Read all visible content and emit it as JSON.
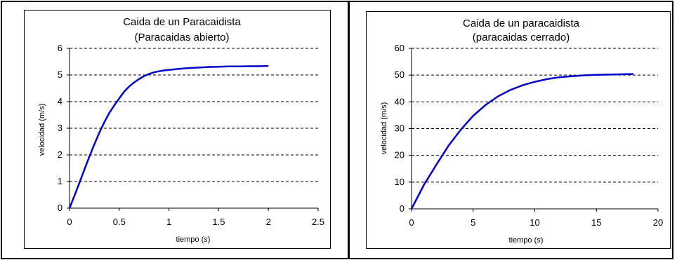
{
  "chart_data": [
    {
      "type": "line",
      "title": "Caida de un Paracaidista",
      "subtitle": "(Paracaidas abierto)",
      "xlabel": "tiempo",
      "xlabel_unit": "s",
      "ylabel": "velocidad (m/s)",
      "xlim": [
        0,
        2.5
      ],
      "ylim": [
        0,
        6
      ],
      "xticks": [
        "0",
        "0.5",
        "1",
        "1.5",
        "2",
        "2.5"
      ],
      "yticks": [
        "0",
        "1",
        "2",
        "3",
        "4",
        "5",
        "6"
      ],
      "grid": "horizontal dashed",
      "line_color": "#0000cc",
      "series": [
        {
          "x": [
            0,
            0.05,
            0.1,
            0.15,
            0.2,
            0.25,
            0.3,
            0.35,
            0.4,
            0.45,
            0.5,
            0.55,
            0.6,
            0.65,
            0.7,
            0.75,
            0.8,
            0.85,
            0.9,
            0.95,
            1.0,
            1.1,
            1.2,
            1.3,
            1.4,
            1.5,
            1.6,
            1.7,
            1.8,
            1.9,
            2.0
          ],
          "y": [
            0,
            0.47,
            0.96,
            1.45,
            1.94,
            2.4,
            2.84,
            3.23,
            3.57,
            3.86,
            4.12,
            4.38,
            4.57,
            4.72,
            4.85,
            4.96,
            5.04,
            5.1,
            5.14,
            5.17,
            5.19,
            5.23,
            5.26,
            5.28,
            5.3,
            5.31,
            5.32,
            5.32,
            5.33,
            5.33,
            5.34
          ]
        }
      ]
    },
    {
      "type": "line",
      "title": "Caida de un paracaidista",
      "subtitle": "(paracaidas cerrado)",
      "xlabel": "tiempo",
      "xlabel_unit": "s",
      "ylabel": "velocidad (m/s)",
      "xlim": [
        0,
        20
      ],
      "ylim": [
        0,
        60
      ],
      "xticks": [
        "0",
        "5",
        "10",
        "15",
        "20"
      ],
      "yticks": [
        "0",
        "10",
        "20",
        "30",
        "40",
        "50",
        "60"
      ],
      "grid": "horizontal dashed",
      "line_color": "#0000cc",
      "series": [
        {
          "x": [
            0,
            1,
            2,
            3,
            4,
            5,
            6,
            7,
            8,
            9,
            10,
            11,
            12,
            13,
            14,
            15,
            16,
            17,
            18
          ],
          "y": [
            0,
            8.9,
            16.4,
            23.6,
            29.6,
            34.8,
            38.8,
            42.0,
            44.4,
            46.2,
            47.5,
            48.5,
            49.2,
            49.6,
            49.9,
            50.1,
            50.2,
            50.3,
            50.4
          ]
        }
      ]
    }
  ]
}
